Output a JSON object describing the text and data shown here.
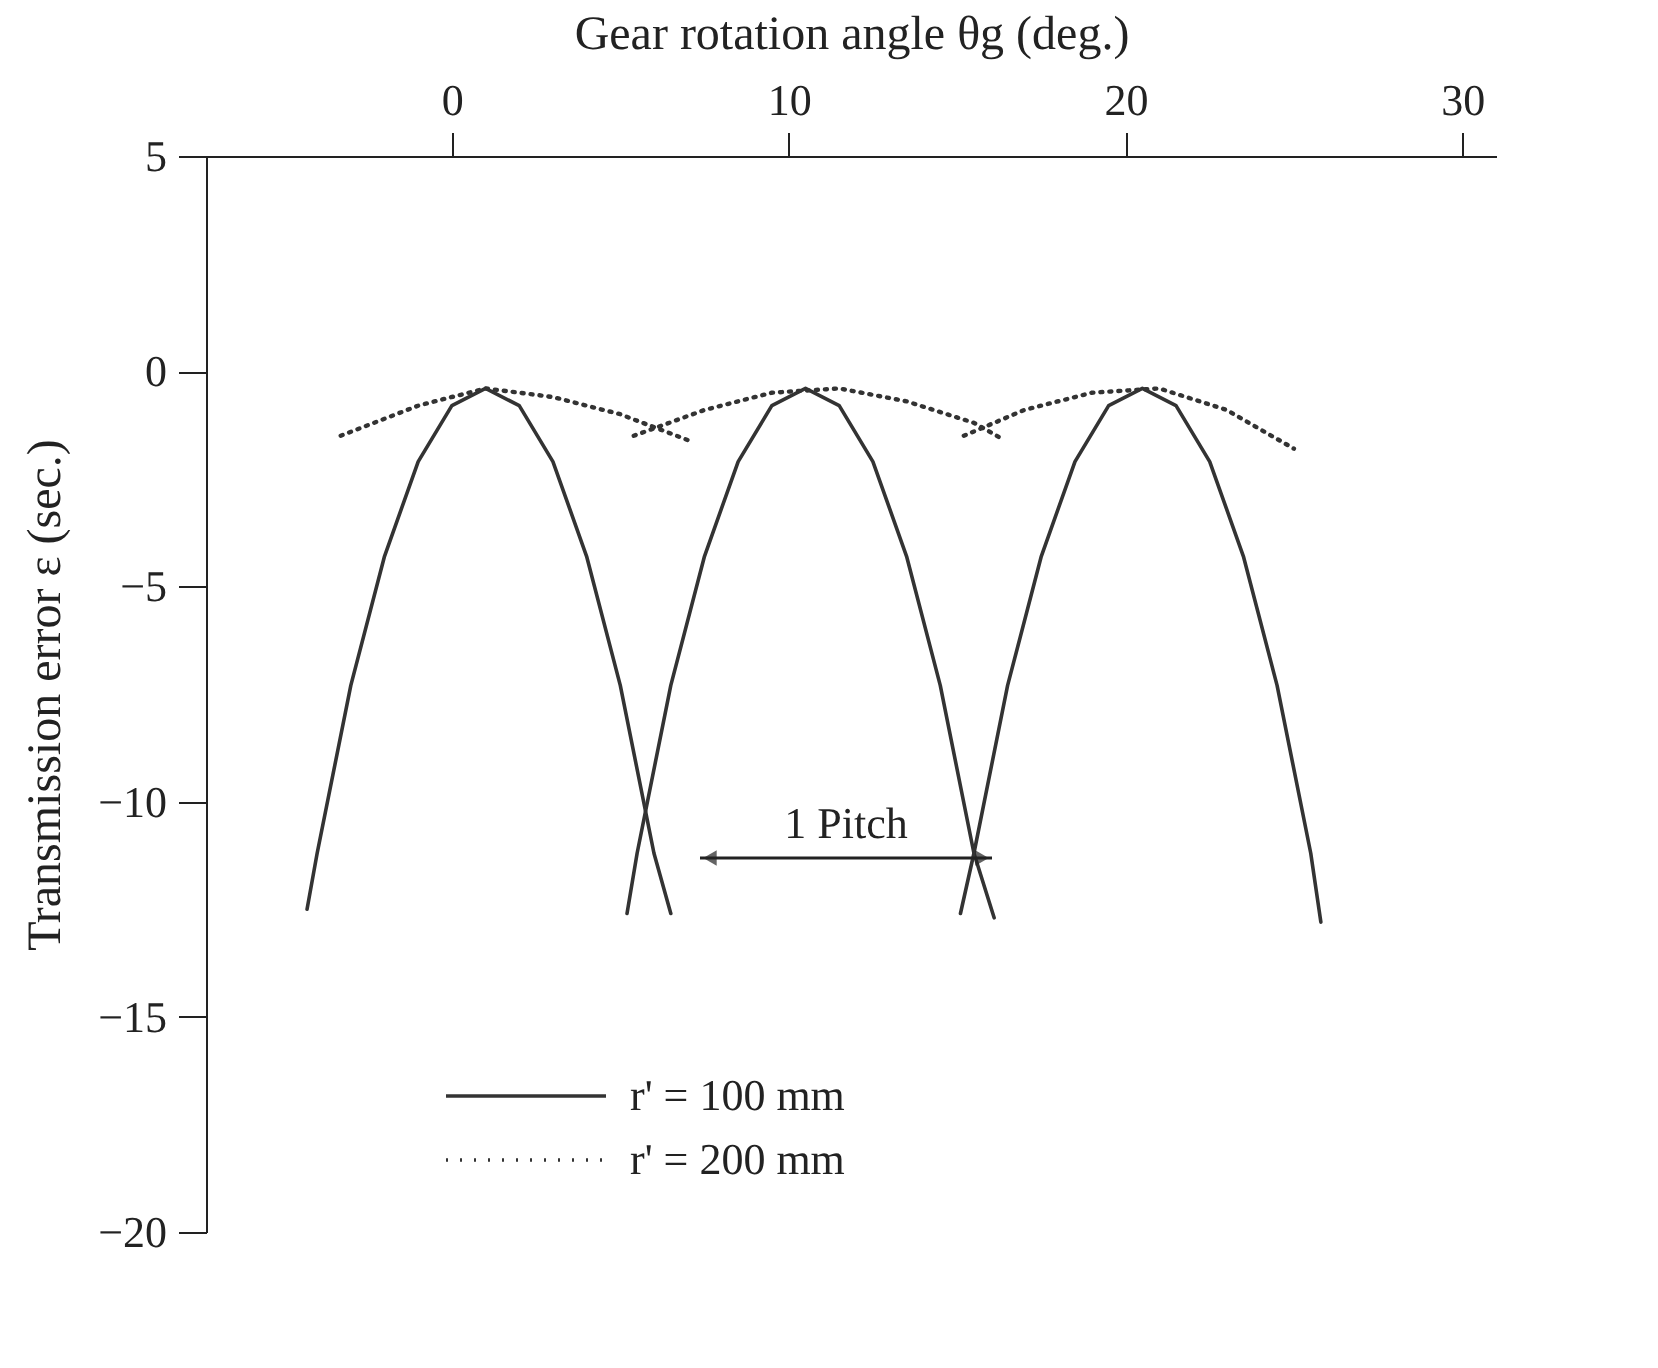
{
  "chart_data": {
    "type": "line",
    "xlabel": "Gear rotation angle θg (deg.)",
    "ylabel": "Transmission error ε (sec.)",
    "xlim": [
      -7.3,
      31
    ],
    "xticks": [
      0,
      10,
      20,
      30
    ],
    "ylim": [
      -20,
      5
    ],
    "yticks": [
      5,
      0,
      -5,
      -10,
      -15,
      -20
    ],
    "grid": false,
    "legend": "bottom",
    "marker": "none",
    "series": [
      {
        "name": "r' = 100 mm",
        "color": "#333333",
        "line_style": "solid",
        "x": [
          -4.3,
          -4,
          -3,
          -2,
          -1,
          0,
          1,
          2,
          3,
          4,
          5,
          6,
          6.5
        ],
        "values": [
          -12.5,
          -11.2,
          -7.3,
          -4.3,
          -2.1,
          -0.8,
          -0.4,
          -0.8,
          -2.1,
          -4.3,
          -7.3,
          -11.2,
          -12.6
        ]
      },
      {
        "color": "#333333",
        "line_style": "solid",
        "x": [
          5.2,
          5.5,
          6.5,
          7.5,
          8.5,
          9.5,
          10.5,
          11.5,
          12.5,
          13.5,
          14.5,
          15.5,
          16.1
        ],
        "values": [
          -12.6,
          -11.2,
          -7.3,
          -4.3,
          -2.1,
          -0.8,
          -0.4,
          -0.8,
          -2.1,
          -4.3,
          -7.3,
          -11.2,
          -12.7
        ]
      },
      {
        "color": "#333333",
        "line_style": "solid",
        "x": [
          15.1,
          15.5,
          16.5,
          17.5,
          18.5,
          19.5,
          20.5,
          21.5,
          22.5,
          23.5,
          24.5,
          25.5,
          25.8
        ],
        "values": [
          -12.6,
          -11.2,
          -7.3,
          -4.3,
          -2.1,
          -0.8,
          -0.4,
          -0.8,
          -2.1,
          -4.3,
          -7.3,
          -11.2,
          -12.8
        ]
      },
      {
        "name": "r' = 200 mm",
        "color": "#333333",
        "line_style": "dotted",
        "x": [
          -3.3,
          -1,
          1,
          3,
          5,
          7
        ],
        "values": [
          -1.5,
          -0.8,
          -0.4,
          -0.6,
          -1.0,
          -1.6
        ]
      },
      {
        "color": "#333333",
        "line_style": "dotted",
        "x": [
          5.4,
          7.5,
          9.5,
          11.5,
          13.5,
          15.5,
          16.4
        ],
        "values": [
          -1.5,
          -0.9,
          -0.5,
          -0.4,
          -0.7,
          -1.2,
          -1.6
        ]
      },
      {
        "color": "#333333",
        "line_style": "dotted",
        "x": [
          15.2,
          17,
          19,
          21,
          23,
          25
        ],
        "values": [
          -1.5,
          -0.9,
          -0.5,
          -0.4,
          -0.9,
          -1.8
        ]
      }
    ],
    "annotations": [
      "1 Pitch"
    ]
  }
}
